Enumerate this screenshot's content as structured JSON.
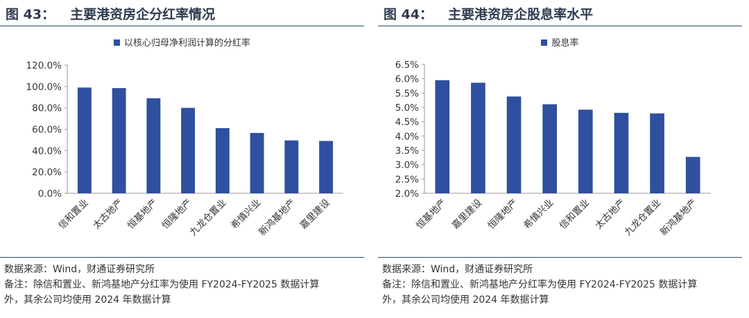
{
  "colors": {
    "bar": "#2f4fa0",
    "axis": "#999999",
    "rule": "#2f4a7a",
    "title": "#2e3a4f"
  },
  "left": {
    "figure_number": "图 43：",
    "figure_name": "主要港资房企分红率情况",
    "source": "数据来源：Wind，财通证券研究所",
    "note_line1": "备注：除信和置业、新鸿基地产分红率为使用 FY2024-FY2025 数据计算",
    "note_line2": "外，其余公司均使用 2024 年数据计算"
  },
  "right": {
    "figure_number": "图 44：",
    "figure_name": "主要港资房企股息率水平",
    "source": "数据来源：Wind，财通证券研究所",
    "note_line1": "备注：除信和置业、新鸿基地产分红率为使用 FY2024-FY2025 数据计算",
    "note_line2": "外，其余公司均使用 2024 年数据计算"
  },
  "chart_data": [
    {
      "type": "bar",
      "title": "",
      "legend_position": "top-center",
      "grid": false,
      "categories": [
        "信和置业",
        "太古地产",
        "恒基地产",
        "恒隆地产",
        "九龙仓置业",
        "希慎兴业",
        "新鸿基地产",
        "嘉里建设"
      ],
      "series": [
        {
          "name": "以核心归母净利润计算的分红率",
          "values": [
            99.0,
            98.5,
            89.0,
            80.0,
            61.0,
            56.5,
            49.5,
            49.0
          ]
        }
      ],
      "ylim": [
        0,
        120
      ],
      "yticks": [
        "0.0%",
        "20.0%",
        "40.0%",
        "60.0%",
        "80.0%",
        "100.0%",
        "120.0%"
      ],
      "xlabel": "",
      "ylabel": ""
    },
    {
      "type": "bar",
      "title": "",
      "legend_position": "top-center",
      "grid": false,
      "categories": [
        "恒基地产",
        "嘉里建设",
        "恒隆地产",
        "希慎兴业",
        "信和置业",
        "太古地产",
        "九龙仓置业",
        "新鸿基地产"
      ],
      "series": [
        {
          "name": "股息率",
          "values": [
            5.95,
            5.86,
            5.38,
            5.11,
            4.92,
            4.81,
            4.79,
            3.27
          ]
        }
      ],
      "ylim": [
        2.0,
        6.5
      ],
      "yticks": [
        "2.0%",
        "2.5%",
        "3.0%",
        "3.5%",
        "4.0%",
        "4.5%",
        "5.0%",
        "5.5%",
        "6.0%",
        "6.5%"
      ],
      "xlabel": "",
      "ylabel": ""
    }
  ]
}
